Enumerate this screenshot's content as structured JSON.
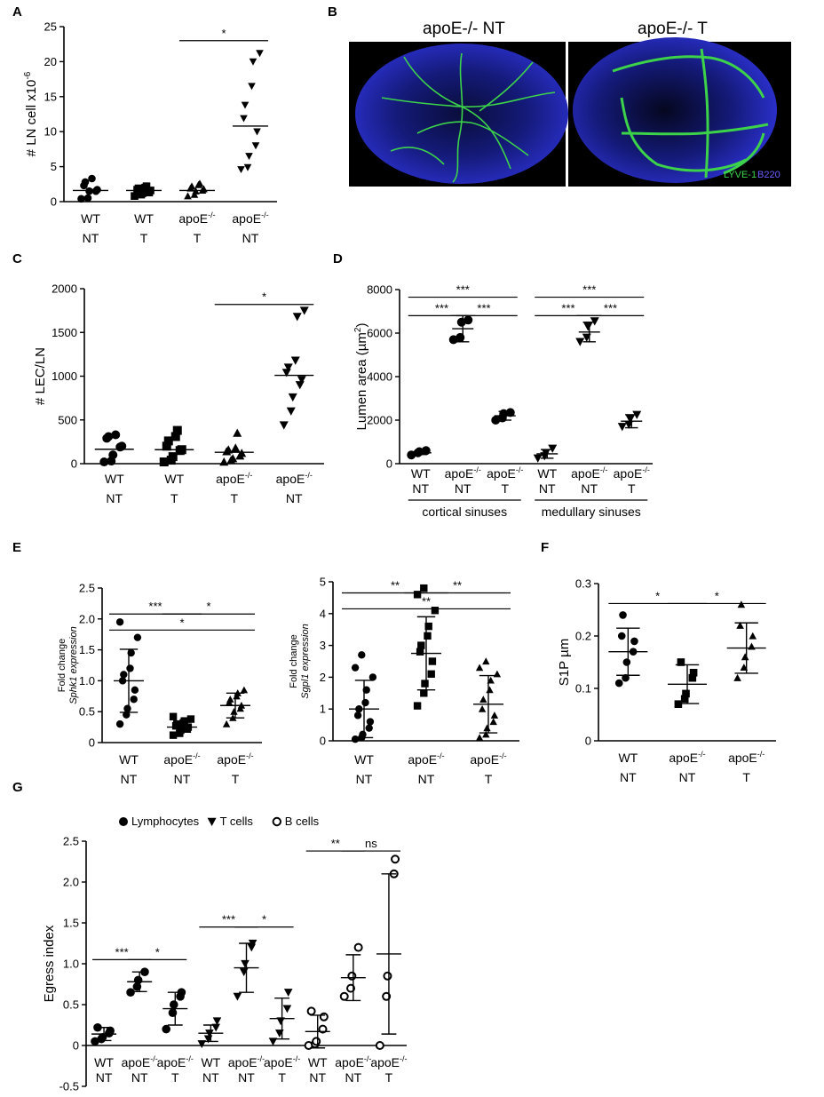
{
  "panel_labels": [
    "A",
    "B",
    "C",
    "D",
    "E",
    "F",
    "G"
  ],
  "micrograph": {
    "left_title": "apoE-/- NT",
    "right_title": "apoE-/- T",
    "stain_1": "LYVE-1",
    "stain_2": "B220",
    "stain_1_color": "#3cd34a",
    "stain_2_color": "#4b3bd6",
    "background_color": "#2a2fc9"
  },
  "chart_data": [
    {
      "id": "A",
      "type": "scatter",
      "ylabel": "# LN cell x10",
      "ylabel_exp": "-6",
      "ylim": [
        0,
        25
      ],
      "yticks": [
        0,
        5,
        10,
        15,
        20,
        25
      ],
      "categories": [
        {
          "line1": "WT",
          "line2": "NT",
          "sup": ""
        },
        {
          "line1": "WT",
          "line2": "T",
          "sup": ""
        },
        {
          "line1": "apoE",
          "line2": "T",
          "sup": "-/-"
        },
        {
          "line1": "apoE",
          "line2": "NT",
          "sup": "-/-"
        }
      ],
      "series": [
        {
          "marker": "circle",
          "mean": 1.6,
          "values": [
            0.4,
            0.5,
            1.5,
            1.5,
            1.7,
            2.3,
            2.8,
            3.3
          ]
        },
        {
          "marker": "square",
          "mean": 1.6,
          "values": [
            0.8,
            1.0,
            1.2,
            1.3,
            1.6,
            1.7,
            1.9,
            2.0,
            2.2
          ]
        },
        {
          "marker": "triangle-up",
          "mean": 1.6,
          "values": [
            0.8,
            1.0,
            1.5,
            1.6,
            1.8,
            1.9,
            2.2,
            2.4,
            2.6
          ]
        },
        {
          "marker": "triangle-down",
          "mean": 10.8,
          "values": [
            4.6,
            4.9,
            6.5,
            8.0,
            10.0,
            11.9,
            13.8,
            16.5,
            20.0,
            21.2
          ]
        }
      ],
      "brackets": [
        {
          "from": 2,
          "to": 3,
          "label": "*",
          "y": 23
        }
      ]
    },
    {
      "id": "C",
      "type": "scatter",
      "ylabel": "# LEC/LN",
      "ylim": [
        0,
        2000
      ],
      "yticks": [
        0,
        500,
        1000,
        1500,
        2000
      ],
      "categories": [
        {
          "line1": "WT",
          "line2": "NT",
          "sup": ""
        },
        {
          "line1": "WT",
          "line2": "T",
          "sup": ""
        },
        {
          "line1": "apoE",
          "line2": "T",
          "sup": "-/-"
        },
        {
          "line1": "apoE",
          "line2": "NT",
          "sup": "-/-"
        }
      ],
      "series": [
        {
          "marker": "circle",
          "mean": 165,
          "values": [
            20,
            30,
            100,
            190,
            200,
            290,
            310,
            330
          ]
        },
        {
          "marker": "square",
          "mean": 160,
          "values": [
            20,
            40,
            80,
            150,
            160,
            200,
            260,
            310,
            380
          ]
        },
        {
          "marker": "triangle-up",
          "mean": 130,
          "values": [
            20,
            40,
            60,
            90,
            120,
            140,
            160,
            180,
            350
          ]
        },
        {
          "marker": "triangle-down",
          "mean": 1010,
          "values": [
            440,
            600,
            760,
            900,
            960,
            1040,
            1100,
            1180,
            1680,
            1750
          ]
        }
      ],
      "brackets": [
        {
          "from": 2,
          "to": 3,
          "label": "*",
          "y": 1820
        }
      ]
    },
    {
      "id": "D",
      "type": "scatter",
      "ylabel": "Lumen area (µm",
      "ylabel_exp": "2",
      "ylabel_end": ")",
      "ylim": [
        0,
        8000
      ],
      "yticks": [
        0,
        2000,
        4000,
        6000,
        8000
      ],
      "categories": [
        {
          "line1": "WT",
          "line2": "NT",
          "sup": ""
        },
        {
          "line1": "apoE",
          "line2": "NT",
          "sup": "-/-"
        },
        {
          "line1": "apoE",
          "line2": "T",
          "sup": "-/-"
        },
        {
          "line1": "WT",
          "line2": "NT",
          "sup": ""
        },
        {
          "line1": "apoE",
          "line2": "NT",
          "sup": "-/-"
        },
        {
          "line1": "apoE",
          "line2": "T",
          "sup": "-/-"
        }
      ],
      "group_labels": [
        {
          "label": "cortical sinuses",
          "from": 0,
          "to": 2
        },
        {
          "label": "medullary sinuses",
          "from": 3,
          "to": 5
        }
      ],
      "series": [
        {
          "marker": "circle",
          "mean": 500,
          "sd": 80,
          "values": [
            400,
            500,
            550,
            600
          ]
        },
        {
          "marker": "circle",
          "mean": 6200,
          "sd": 600,
          "values": [
            5700,
            5800,
            6500,
            6600
          ]
        },
        {
          "marker": "circle",
          "mean": 2200,
          "sd": 200,
          "values": [
            2000,
            2100,
            2300,
            2350
          ]
        },
        {
          "marker": "triangle-down",
          "mean": 450,
          "sd": 200,
          "values": [
            250,
            350,
            500,
            700
          ]
        },
        {
          "marker": "triangle-down",
          "mean": 6050,
          "sd": 450,
          "values": [
            5600,
            5800,
            6300,
            6550
          ]
        },
        {
          "marker": "triangle-down",
          "mean": 1950,
          "sd": 300,
          "values": [
            1700,
            1800,
            2050,
            2250
          ]
        }
      ],
      "brackets": [
        {
          "from": 0,
          "to": 2,
          "label": "***",
          "y": 7650
        },
        {
          "from": 0,
          "to": 1,
          "label": "***",
          "y": 6800
        },
        {
          "from": 1,
          "to": 2,
          "label": "***",
          "y": 6800
        },
        {
          "from": 3,
          "to": 5,
          "label": "***",
          "y": 7650
        },
        {
          "from": 3,
          "to": 4,
          "label": "***",
          "y": 6800
        },
        {
          "from": 4,
          "to": 5,
          "label": "***",
          "y": 6800
        }
      ]
    },
    {
      "id": "E1",
      "type": "scatter",
      "ylabel_line1": "Fold change",
      "ylabel_line2": "Sphk1 expression",
      "ylim": [
        0,
        2.5
      ],
      "yticks": [
        "0",
        "0.5",
        "1.0",
        "1.5",
        "2.0",
        "2.5"
      ],
      "ytick_values": [
        0,
        0.5,
        1.0,
        1.5,
        2.0,
        2.5
      ],
      "categories": [
        {
          "line1": "WT",
          "line2": "NT",
          "sup": ""
        },
        {
          "line1": "apoE",
          "line2": "NT",
          "sup": "-/-"
        },
        {
          "line1": "apoE",
          "line2": "T",
          "sup": "-/-"
        }
      ],
      "series": [
        {
          "marker": "circle",
          "mean": 1.0,
          "sd": 0.51,
          "values": [
            0.3,
            0.45,
            0.55,
            0.7,
            0.85,
            1.0,
            1.1,
            1.2,
            1.45,
            1.7,
            1.95
          ]
        },
        {
          "marker": "square",
          "mean": 0.25,
          "sd": 0.08,
          "values": [
            0.12,
            0.15,
            0.2,
            0.22,
            0.25,
            0.27,
            0.3,
            0.32,
            0.35,
            0.38,
            0.42
          ]
        },
        {
          "marker": "triangle-up",
          "mean": 0.6,
          "sd": 0.2,
          "values": [
            0.3,
            0.4,
            0.5,
            0.55,
            0.6,
            0.65,
            0.7,
            0.75,
            0.8,
            0.85
          ]
        }
      ],
      "brackets": [
        {
          "from": 0,
          "to": 1,
          "label": "***",
          "y": 2.08
        },
        {
          "from": 1,
          "to": 2,
          "label": "*",
          "y": 2.08
        },
        {
          "from": 0,
          "to": 2,
          "label": "*",
          "y": 1.82
        }
      ]
    },
    {
      "id": "E2",
      "type": "scatter",
      "ylabel_line1": "Fold change",
      "ylabel_line2": "Sgpl1 expression",
      "ylim": [
        0,
        5
      ],
      "yticks": [
        "0",
        "1",
        "2",
        "3",
        "4",
        "5"
      ],
      "ytick_values": [
        0,
        1,
        2,
        3,
        4,
        5
      ],
      "categories": [
        {
          "line1": "WT",
          "line2": "NT",
          "sup": ""
        },
        {
          "line1": "apoE",
          "line2": "NT",
          "sup": "-/-"
        },
        {
          "line1": "apoE",
          "line2": "T",
          "sup": "-/-"
        }
      ],
      "series": [
        {
          "marker": "circle",
          "mean": 1.0,
          "sd": 0.9,
          "values": [
            0.05,
            0.1,
            0.2,
            0.4,
            0.6,
            0.8,
            1.0,
            1.2,
            1.6,
            2.0,
            2.3,
            2.7
          ]
        },
        {
          "marker": "square",
          "mean": 2.75,
          "sd": 1.15,
          "values": [
            1.1,
            1.5,
            1.8,
            2.1,
            2.5,
            2.8,
            3.0,
            3.3,
            3.6,
            4.1,
            4.6,
            4.8
          ]
        },
        {
          "marker": "triangle-up",
          "mean": 1.15,
          "sd": 0.9,
          "values": [
            0.1,
            0.2,
            0.4,
            0.6,
            0.8,
            1.0,
            1.3,
            1.6,
            1.9,
            2.1,
            2.3,
            2.5
          ]
        }
      ],
      "brackets": [
        {
          "from": 0,
          "to": 1,
          "label": "**",
          "y": 4.65
        },
        {
          "from": 1,
          "to": 2,
          "label": "**",
          "y": 4.65
        },
        {
          "from": 0,
          "to": 2,
          "label": "**",
          "y": 4.15
        }
      ]
    },
    {
      "id": "F",
      "type": "scatter",
      "ylabel": "S1P µm",
      "ylim": [
        0,
        0.3
      ],
      "yticks": [
        "0",
        "0.1",
        "0.2",
        "0.3"
      ],
      "ytick_values": [
        0,
        0.1,
        0.2,
        0.3
      ],
      "categories": [
        {
          "line1": "WT",
          "line2": "NT",
          "sup": ""
        },
        {
          "line1": "apoE",
          "line2": "NT",
          "sup": "-/-"
        },
        {
          "line1": "apoE",
          "line2": "T",
          "sup": "-/-"
        }
      ],
      "series": [
        {
          "marker": "circle",
          "mean": 0.17,
          "sd": 0.045,
          "values": [
            0.11,
            0.12,
            0.15,
            0.17,
            0.19,
            0.2,
            0.24
          ]
        },
        {
          "marker": "square",
          "mean": 0.108,
          "sd": 0.037,
          "values": [
            0.07,
            0.08,
            0.09,
            0.12,
            0.13,
            0.15
          ]
        },
        {
          "marker": "triangle-up",
          "mean": 0.177,
          "sd": 0.048,
          "values": [
            0.12,
            0.14,
            0.16,
            0.18,
            0.2,
            0.22,
            0.26
          ]
        }
      ],
      "brackets": [
        {
          "from": 0,
          "to": 1,
          "label": "*",
          "y": 0.262
        },
        {
          "from": 1,
          "to": 2,
          "label": "*",
          "y": 0.262
        }
      ]
    },
    {
      "id": "G",
      "type": "scatter",
      "ylabel": "Egress index",
      "ylim": [
        -0.5,
        2.5
      ],
      "yticks": [
        "-0.5",
        "0",
        "0.5",
        "1.0",
        "1.5",
        "2.0",
        "2.5"
      ],
      "ytick_values": [
        -0.5,
        0,
        0.5,
        1.0,
        1.5,
        2.0,
        2.5
      ],
      "legend": [
        {
          "marker": "circle",
          "label": "Lymphocytes"
        },
        {
          "marker": "triangle-down",
          "label": "T cells"
        },
        {
          "marker": "circle-open",
          "label": "B cells"
        }
      ],
      "categories": [
        {
          "line1": "WT",
          "line2": "NT",
          "sup": ""
        },
        {
          "line1": "apoE",
          "line2": "NT",
          "sup": "-/-"
        },
        {
          "line1": "apoE",
          "line2": "T",
          "sup": "-/-"
        },
        {
          "line1": "WT",
          "line2": "NT",
          "sup": ""
        },
        {
          "line1": "apoE",
          "line2": "NT",
          "sup": "-/-"
        },
        {
          "line1": "apoE",
          "line2": "T",
          "sup": "-/-"
        },
        {
          "line1": "WT",
          "line2": "NT",
          "sup": ""
        },
        {
          "line1": "apoE",
          "line2": "NT",
          "sup": "-/-"
        },
        {
          "line1": "apoE",
          "line2": "T",
          "sup": "-/-"
        }
      ],
      "series": [
        {
          "marker": "circle",
          "mean": 0.14,
          "sd": 0.08,
          "values": [
            0.05,
            0.08,
            0.1,
            0.15,
            0.18,
            0.22
          ]
        },
        {
          "marker": "circle",
          "mean": 0.78,
          "sd": 0.12,
          "values": [
            0.65,
            0.72,
            0.8,
            0.9
          ]
        },
        {
          "marker": "circle",
          "mean": 0.45,
          "sd": 0.2,
          "values": [
            0.2,
            0.4,
            0.5,
            0.6,
            0.65
          ]
        },
        {
          "marker": "triangle-down",
          "mean": 0.15,
          "sd": 0.1,
          "values": [
            0.02,
            0.08,
            0.15,
            0.22,
            0.3
          ]
        },
        {
          "marker": "triangle-down",
          "mean": 0.95,
          "sd": 0.3,
          "values": [
            0.6,
            0.9,
            1.0,
            1.2,
            1.25
          ]
        },
        {
          "marker": "triangle-down",
          "mean": 0.33,
          "sd": 0.25,
          "values": [
            0.05,
            0.15,
            0.3,
            0.45,
            0.65
          ]
        },
        {
          "marker": "circle-open",
          "mean": 0.17,
          "sd": 0.2,
          "values": [
            0.0,
            0.02,
            0.05,
            0.2,
            0.35,
            0.42
          ]
        },
        {
          "marker": "circle-open",
          "mean": 0.83,
          "sd": 0.28,
          "values": [
            0.6,
            0.7,
            0.85,
            1.2
          ]
        },
        {
          "marker": "circle-open",
          "mean": 1.12,
          "sd": 0.98,
          "values": [
            0.0,
            0.6,
            0.85,
            2.1,
            2.28
          ]
        }
      ],
      "brackets": [
        {
          "from": 0,
          "to": 1,
          "label": "***",
          "y": 1.05
        },
        {
          "from": 1,
          "to": 2,
          "label": "*",
          "y": 1.05
        },
        {
          "from": 3,
          "to": 4,
          "label": "***",
          "y": 1.45
        },
        {
          "from": 4,
          "to": 5,
          "label": "*",
          "y": 1.45
        },
        {
          "from": 6,
          "to": 7,
          "label": "**",
          "y": 2.38
        },
        {
          "from": 7,
          "to": 8,
          "label": "ns",
          "y": 2.38
        }
      ]
    }
  ]
}
